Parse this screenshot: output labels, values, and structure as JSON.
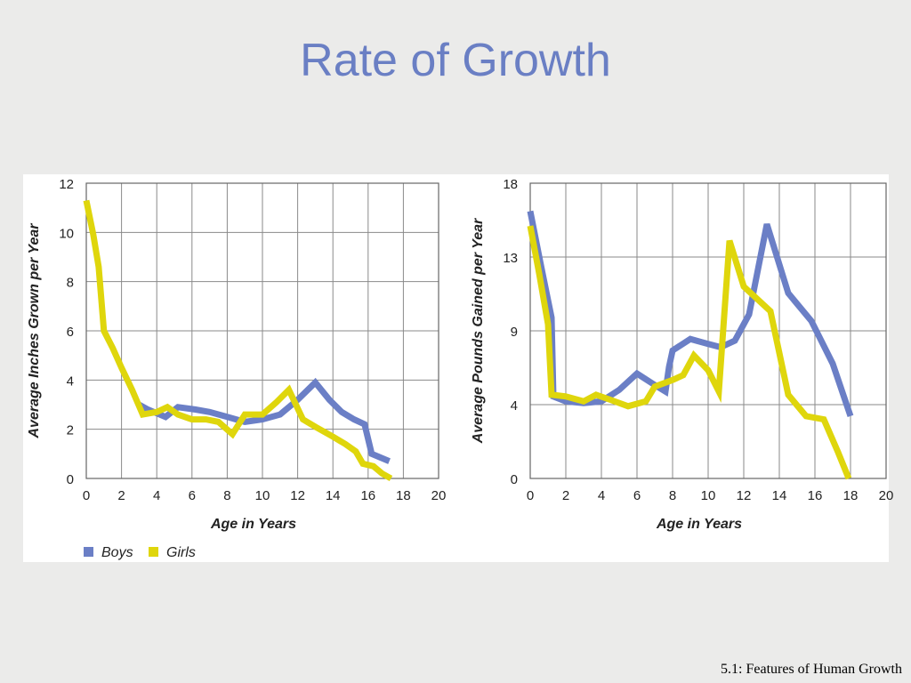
{
  "slide": {
    "title": "Rate of Growth",
    "footer": "5.1: Features of Human Growth"
  },
  "colors": {
    "boys": "#6b7fc6",
    "girls": "#dfd60c",
    "grid": "#8a8a8a",
    "frame": "#666666"
  },
  "legend": {
    "boys": "Boys",
    "girls": "Girls"
  },
  "chart_data": [
    {
      "type": "line",
      "xlabel": "Age in Years",
      "ylabel": "Average Inches Grown per Year",
      "xlim": [
        0,
        20
      ],
      "ylim": [
        0,
        12
      ],
      "x_ticks": [
        "0",
        "2",
        "4",
        "6",
        "8",
        "10",
        "12",
        "14",
        "16",
        "18",
        "20"
      ],
      "y_ticks": [
        "0",
        "2",
        "4",
        "6",
        "8",
        "10",
        "12"
      ],
      "grid": true,
      "series": [
        {
          "name": "Boys",
          "x": [
            3.0,
            3.5,
            4.5,
            5.2,
            6.2,
            7.0,
            8.0,
            9.0,
            10.0,
            11.0,
            12.0,
            13.0,
            13.8,
            14.5,
            15.2,
            15.8,
            16.2,
            17.2
          ],
          "y": [
            3.0,
            2.8,
            2.5,
            2.9,
            2.8,
            2.7,
            2.5,
            2.3,
            2.4,
            2.6,
            3.2,
            3.9,
            3.2,
            2.7,
            2.4,
            2.2,
            1.0,
            0.7
          ]
        },
        {
          "name": "Girls",
          "x": [
            0.0,
            0.4,
            0.7,
            1.0,
            1.5,
            2.0,
            2.6,
            3.2,
            4.0,
            4.6,
            5.2,
            6.0,
            6.8,
            7.5,
            8.3,
            9.0,
            10.0,
            10.8,
            11.5,
            12.3,
            13.0,
            14.0,
            14.7,
            15.3,
            15.7,
            16.3,
            16.8,
            17.3
          ],
          "y": [
            11.3,
            9.9,
            8.6,
            6.0,
            5.3,
            4.5,
            3.6,
            2.6,
            2.7,
            2.9,
            2.6,
            2.4,
            2.4,
            2.3,
            1.8,
            2.6,
            2.6,
            3.1,
            3.6,
            2.4,
            2.1,
            1.7,
            1.4,
            1.1,
            0.6,
            0.5,
            0.2,
            0.0
          ]
        }
      ]
    },
    {
      "type": "line",
      "xlabel": "Age in Years",
      "ylabel": "Average Pounds Gained per Year",
      "xlim": [
        0,
        20
      ],
      "ylim": [
        0,
        18
      ],
      "x_ticks": [
        "0",
        "2",
        "4",
        "6",
        "8",
        "10",
        "12",
        "14",
        "16",
        "18",
        "20"
      ],
      "y_ticks": [
        {
          "value": 0,
          "label": "0"
        },
        {
          "value": 4.5,
          "label": "4"
        },
        {
          "value": 9,
          "label": "9"
        },
        {
          "value": 13.5,
          "label": "13"
        },
        {
          "value": 18,
          "label": "18"
        }
      ],
      "grid": true,
      "series": [
        {
          "name": "Boys",
          "x": [
            0.0,
            0.6,
            1.2,
            1.3,
            2.0,
            3.0,
            4.0,
            5.0,
            6.0,
            7.0,
            7.6,
            7.8,
            8.0,
            9.0,
            10.0,
            10.7,
            11.5,
            12.3,
            13.3,
            14.5,
            15.8,
            17.0,
            18.0
          ],
          "y": [
            16.3,
            13.0,
            9.8,
            5.0,
            4.7,
            4.6,
            4.7,
            5.4,
            6.4,
            5.7,
            5.3,
            6.8,
            7.8,
            8.5,
            8.2,
            8.0,
            8.4,
            10.0,
            15.5,
            11.3,
            9.6,
            7.0,
            3.8
          ]
        },
        {
          "name": "Girls",
          "x": [
            0.0,
            0.5,
            1.0,
            1.2,
            2.0,
            3.0,
            3.7,
            4.5,
            5.5,
            6.5,
            7.0,
            8.0,
            8.6,
            9.2,
            10.0,
            10.6,
            11.2,
            12.0,
            13.5,
            14.5,
            15.5,
            16.5,
            17.3,
            17.9
          ],
          "y": [
            15.4,
            12.5,
            9.4,
            5.1,
            5.0,
            4.7,
            5.1,
            4.8,
            4.4,
            4.7,
            5.6,
            6.0,
            6.3,
            7.5,
            6.6,
            5.3,
            14.5,
            11.7,
            10.2,
            5.1,
            3.8,
            3.6,
            1.6,
            0.0
          ]
        }
      ]
    }
  ]
}
